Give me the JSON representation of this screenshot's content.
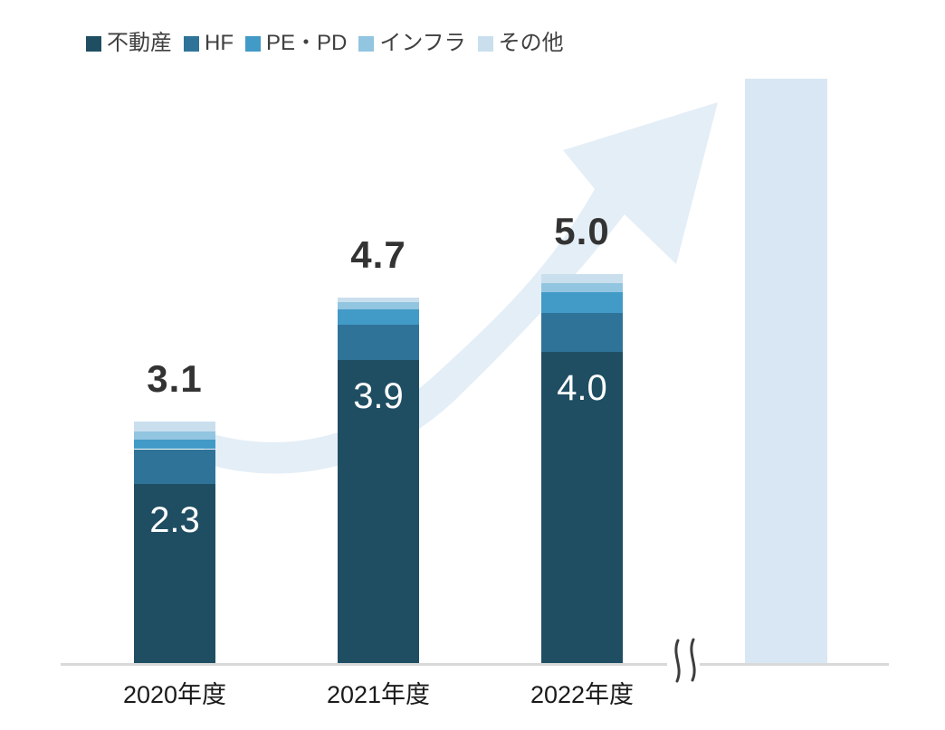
{
  "chart_data": {
    "type": "bar",
    "stacked": true,
    "title": "",
    "categories": [
      "2020年度",
      "2021年度",
      "2022年度"
    ],
    "series": [
      {
        "key": "real-estate",
        "name": "不動産",
        "color": "#1F4E63",
        "values": [
          2.3,
          3.9,
          4.0
        ],
        "estimated": false
      },
      {
        "key": "hf",
        "name": "HF",
        "color": "#2F7399",
        "values": [
          0.45,
          0.45,
          0.5
        ],
        "estimated": true
      },
      {
        "key": "pe-pd",
        "name": "PE・PD",
        "color": "#429AC7",
        "values": [
          0.12,
          0.2,
          0.27
        ],
        "estimated": true
      },
      {
        "key": "infra",
        "name": "インフラ",
        "color": "#92C5E0",
        "values": [
          0.11,
          0.09,
          0.11
        ],
        "estimated": true
      },
      {
        "key": "other",
        "name": "その他",
        "color": "#C9DFEE",
        "values": [
          0.12,
          0.06,
          0.12
        ],
        "estimated": true
      }
    ],
    "totals": [
      3.1,
      4.7,
      5.0
    ],
    "total_labels": [
      "3.1",
      "4.7",
      "5.0"
    ],
    "real_estate_labels": [
      "2.3",
      "3.9",
      "4.0"
    ],
    "legend_position": "top-left",
    "y_axis_visible": false,
    "gridlines": false,
    "decorations": {
      "growth_arrow": true,
      "projection_bar_unlabeled": true,
      "axis_break_mark": true
    }
  },
  "colors": {
    "axis_line": "#D9D9D9",
    "arrow": "#E4EEF7",
    "projection_bar": "#D8E7F3",
    "total_label": "#333333",
    "inside_label": "#FFFFFF",
    "category_label": "#1A1A1A",
    "legend_text": "#404040",
    "break_mark": "#3D3D3D"
  }
}
